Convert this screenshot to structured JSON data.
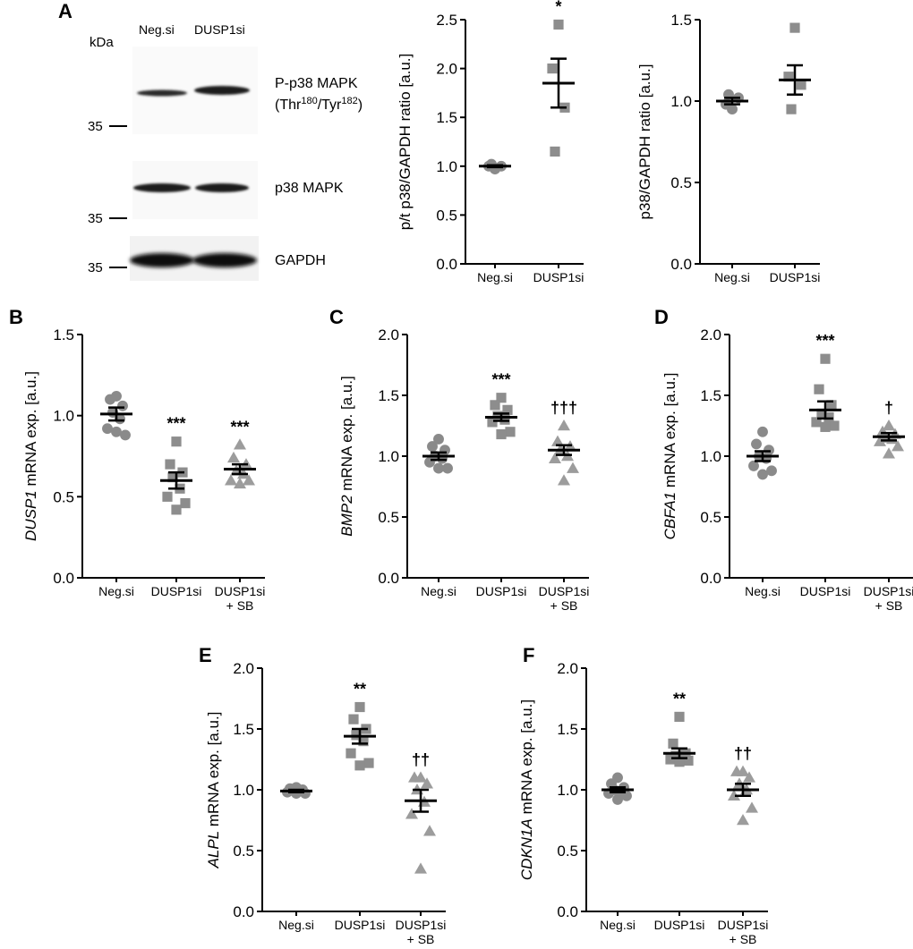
{
  "panel_letters": [
    "A",
    "B",
    "C",
    "D",
    "E",
    "F"
  ],
  "western_blot": {
    "kda_label": "kDa",
    "lanes": [
      "Neg.si",
      "DUSP1si"
    ],
    "bands": [
      {
        "label": "P-p38 MAPK",
        "sublabel_parts": [
          "(Thr",
          "180",
          "/Tyr",
          "182",
          ")"
        ],
        "marker": "35"
      },
      {
        "label": "p38 MAPK",
        "marker": "35"
      },
      {
        "label": "GAPDH",
        "marker": "35"
      }
    ]
  },
  "chart_data": [
    {
      "panel": "A",
      "type": "scatter",
      "ylabel": "p/t p38/GAPDH ratio [a.u.]",
      "ylim": [
        0,
        2.5
      ],
      "yticks": [
        "0.0",
        "0.5",
        "1.0",
        "1.5",
        "2.0",
        "2.5"
      ],
      "categories": [
        "Neg.si",
        "DUSP1si"
      ],
      "groups": [
        {
          "category": "Neg.si",
          "marker": "circle",
          "points": [
            0.97,
            1.0,
            1.0,
            1.02
          ],
          "mean": 1.0,
          "sem": 0.01,
          "significance": ""
        },
        {
          "category": "DUSP1si",
          "marker": "square",
          "points": [
            2.45,
            2.0,
            1.6,
            1.15
          ],
          "mean": 1.85,
          "sem": 0.25,
          "significance": "*"
        }
      ]
    },
    {
      "panel": "A2",
      "type": "scatter",
      "ylabel": "p38/GAPDH ratio [a.u.]",
      "ylim": [
        0,
        1.5
      ],
      "yticks": [
        "0.0",
        "0.5",
        "1.0",
        "1.5"
      ],
      "categories": [
        "Neg.si",
        "DUSP1si"
      ],
      "groups": [
        {
          "category": "Neg.si",
          "marker": "circle",
          "points": [
            0.95,
            0.98,
            1.02,
            1.04
          ],
          "mean": 1.0,
          "sem": 0.02,
          "significance": ""
        },
        {
          "category": "DUSP1si",
          "marker": "square",
          "points": [
            1.45,
            1.15,
            1.1,
            0.95
          ],
          "mean": 1.13,
          "sem": 0.09,
          "significance": ""
        }
      ]
    },
    {
      "panel": "B",
      "type": "scatter",
      "ylabel_gene": "DUSP1",
      "ylabel_rest": " mRNA exp. [a.u.]",
      "ylim": [
        0,
        1.5
      ],
      "yticks": [
        "0.0",
        "0.5",
        "1.0",
        "1.5"
      ],
      "categories": [
        "Neg.si",
        "DUSP1si",
        "DUSP1si\n+ SB"
      ],
      "groups": [
        {
          "category": "Neg.si",
          "marker": "circle",
          "points": [
            1.12,
            1.1,
            1.06,
            1.02,
            0.98,
            0.92,
            0.88,
            0.9
          ],
          "mean": 1.01,
          "sem": 0.04,
          "significance": ""
        },
        {
          "category": "DUSP1si",
          "marker": "square",
          "points": [
            0.84,
            0.7,
            0.65,
            0.62,
            0.55,
            0.5,
            0.46,
            0.42
          ],
          "mean": 0.6,
          "sem": 0.05,
          "significance": "***"
        },
        {
          "category": "DUSP1si\n+ SB",
          "marker": "triangle",
          "points": [
            0.82,
            0.74,
            0.7,
            0.66,
            0.64,
            0.6,
            0.6,
            0.58
          ],
          "mean": 0.67,
          "sem": 0.03,
          "significance": "***"
        }
      ]
    },
    {
      "panel": "C",
      "type": "scatter",
      "ylabel_gene": "BMP2",
      "ylabel_rest": " mRNA exp. [a.u.]",
      "ylim": [
        0,
        2.0
      ],
      "yticks": [
        "0.0",
        "0.5",
        "1.0",
        "1.5",
        "2.0"
      ],
      "categories": [
        "Neg.si",
        "DUSP1si",
        "DUSP1si\n+ SB"
      ],
      "groups": [
        {
          "category": "Neg.si",
          "marker": "circle",
          "points": [
            1.14,
            1.08,
            1.05,
            1.0,
            0.98,
            0.95,
            0.9,
            0.9
          ],
          "mean": 1.0,
          "sem": 0.03,
          "significance": ""
        },
        {
          "category": "DUSP1si",
          "marker": "square",
          "points": [
            1.48,
            1.42,
            1.38,
            1.33,
            1.3,
            1.28,
            1.2,
            1.18
          ],
          "mean": 1.32,
          "sem": 0.03,
          "significance": "***"
        },
        {
          "category": "DUSP1si\n+ SB",
          "marker": "triangle",
          "points": [
            1.25,
            1.12,
            1.08,
            1.05,
            1.0,
            0.98,
            0.9,
            0.8
          ],
          "mean": 1.05,
          "sem": 0.04,
          "significance": "†††"
        }
      ]
    },
    {
      "panel": "D",
      "type": "scatter",
      "ylabel_gene": "CBFA1",
      "ylabel_rest": " mRNA exp. [a.u.]",
      "ylim": [
        0,
        2.0
      ],
      "yticks": [
        "0.0",
        "0.5",
        "1.0",
        "1.5",
        "2.0"
      ],
      "categories": [
        "Neg.si",
        "DUSP1si",
        "DUSP1si\n+ SB"
      ],
      "groups": [
        {
          "category": "Neg.si",
          "marker": "circle",
          "points": [
            1.2,
            1.1,
            1.05,
            1.0,
            0.98,
            0.92,
            0.88,
            0.85
          ],
          "mean": 1.0,
          "sem": 0.04,
          "significance": ""
        },
        {
          "category": "DUSP1si",
          "marker": "square",
          "points": [
            1.8,
            1.55,
            1.42,
            1.35,
            1.32,
            1.28,
            1.25,
            1.24
          ],
          "mean": 1.38,
          "sem": 0.07,
          "significance": "***"
        },
        {
          "category": "DUSP1si\n+ SB",
          "marker": "triangle",
          "points": [
            1.25,
            1.2,
            1.18,
            1.15,
            1.14,
            1.12,
            1.08,
            1.02
          ],
          "mean": 1.16,
          "sem": 0.03,
          "significance": "†"
        }
      ]
    },
    {
      "panel": "E",
      "type": "scatter",
      "ylabel_gene": "ALPL",
      "ylabel_rest": " mRNA exp. [a.u.]",
      "ylim": [
        0,
        2.0
      ],
      "yticks": [
        "0.0",
        "0.5",
        "1.0",
        "1.5",
        "2.0"
      ],
      "categories": [
        "Neg.si",
        "DUSP1si",
        "DUSP1si\n+ SB"
      ],
      "groups": [
        {
          "category": "Neg.si",
          "marker": "circle",
          "points": [
            1.02,
            1.01,
            1.0,
            1.0,
            0.99,
            0.98,
            0.97,
            0.97
          ],
          "mean": 0.99,
          "sem": 0.01,
          "significance": ""
        },
        {
          "category": "DUSP1si",
          "marker": "square",
          "points": [
            1.68,
            1.58,
            1.5,
            1.45,
            1.4,
            1.3,
            1.22,
            1.2
          ],
          "mean": 1.44,
          "sem": 0.06,
          "significance": "**"
        },
        {
          "category": "DUSP1si\n+ SB",
          "marker": "triangle",
          "points": [
            1.1,
            1.1,
            1.05,
            1.0,
            0.9,
            0.8,
            0.66,
            0.35
          ],
          "mean": 0.91,
          "sem": 0.09,
          "significance": "††"
        }
      ]
    },
    {
      "panel": "F",
      "type": "scatter",
      "ylabel_gene": "CDKN1A",
      "ylabel_rest": " mRNA exp. [a.u.]",
      "ylim": [
        0,
        2.0
      ],
      "yticks": [
        "0.0",
        "0.5",
        "1.0",
        "1.5",
        "2.0"
      ],
      "categories": [
        "Neg.si",
        "DUSP1si",
        "DUSP1si\n+ SB"
      ],
      "groups": [
        {
          "category": "Neg.si",
          "marker": "circle",
          "points": [
            1.1,
            1.05,
            1.02,
            1.0,
            0.98,
            0.97,
            0.95,
            0.92
          ],
          "mean": 1.0,
          "sem": 0.02,
          "significance": ""
        },
        {
          "category": "DUSP1si",
          "marker": "square",
          "points": [
            1.6,
            1.38,
            1.3,
            1.28,
            1.26,
            1.25,
            1.24,
            1.23
          ],
          "mean": 1.3,
          "sem": 0.04,
          "significance": "**"
        },
        {
          "category": "DUSP1si\n+ SB",
          "marker": "triangle",
          "points": [
            1.15,
            1.15,
            1.1,
            1.05,
            1.0,
            0.95,
            0.85,
            0.75
          ],
          "mean": 1.0,
          "sem": 0.05,
          "significance": "††"
        }
      ]
    }
  ]
}
